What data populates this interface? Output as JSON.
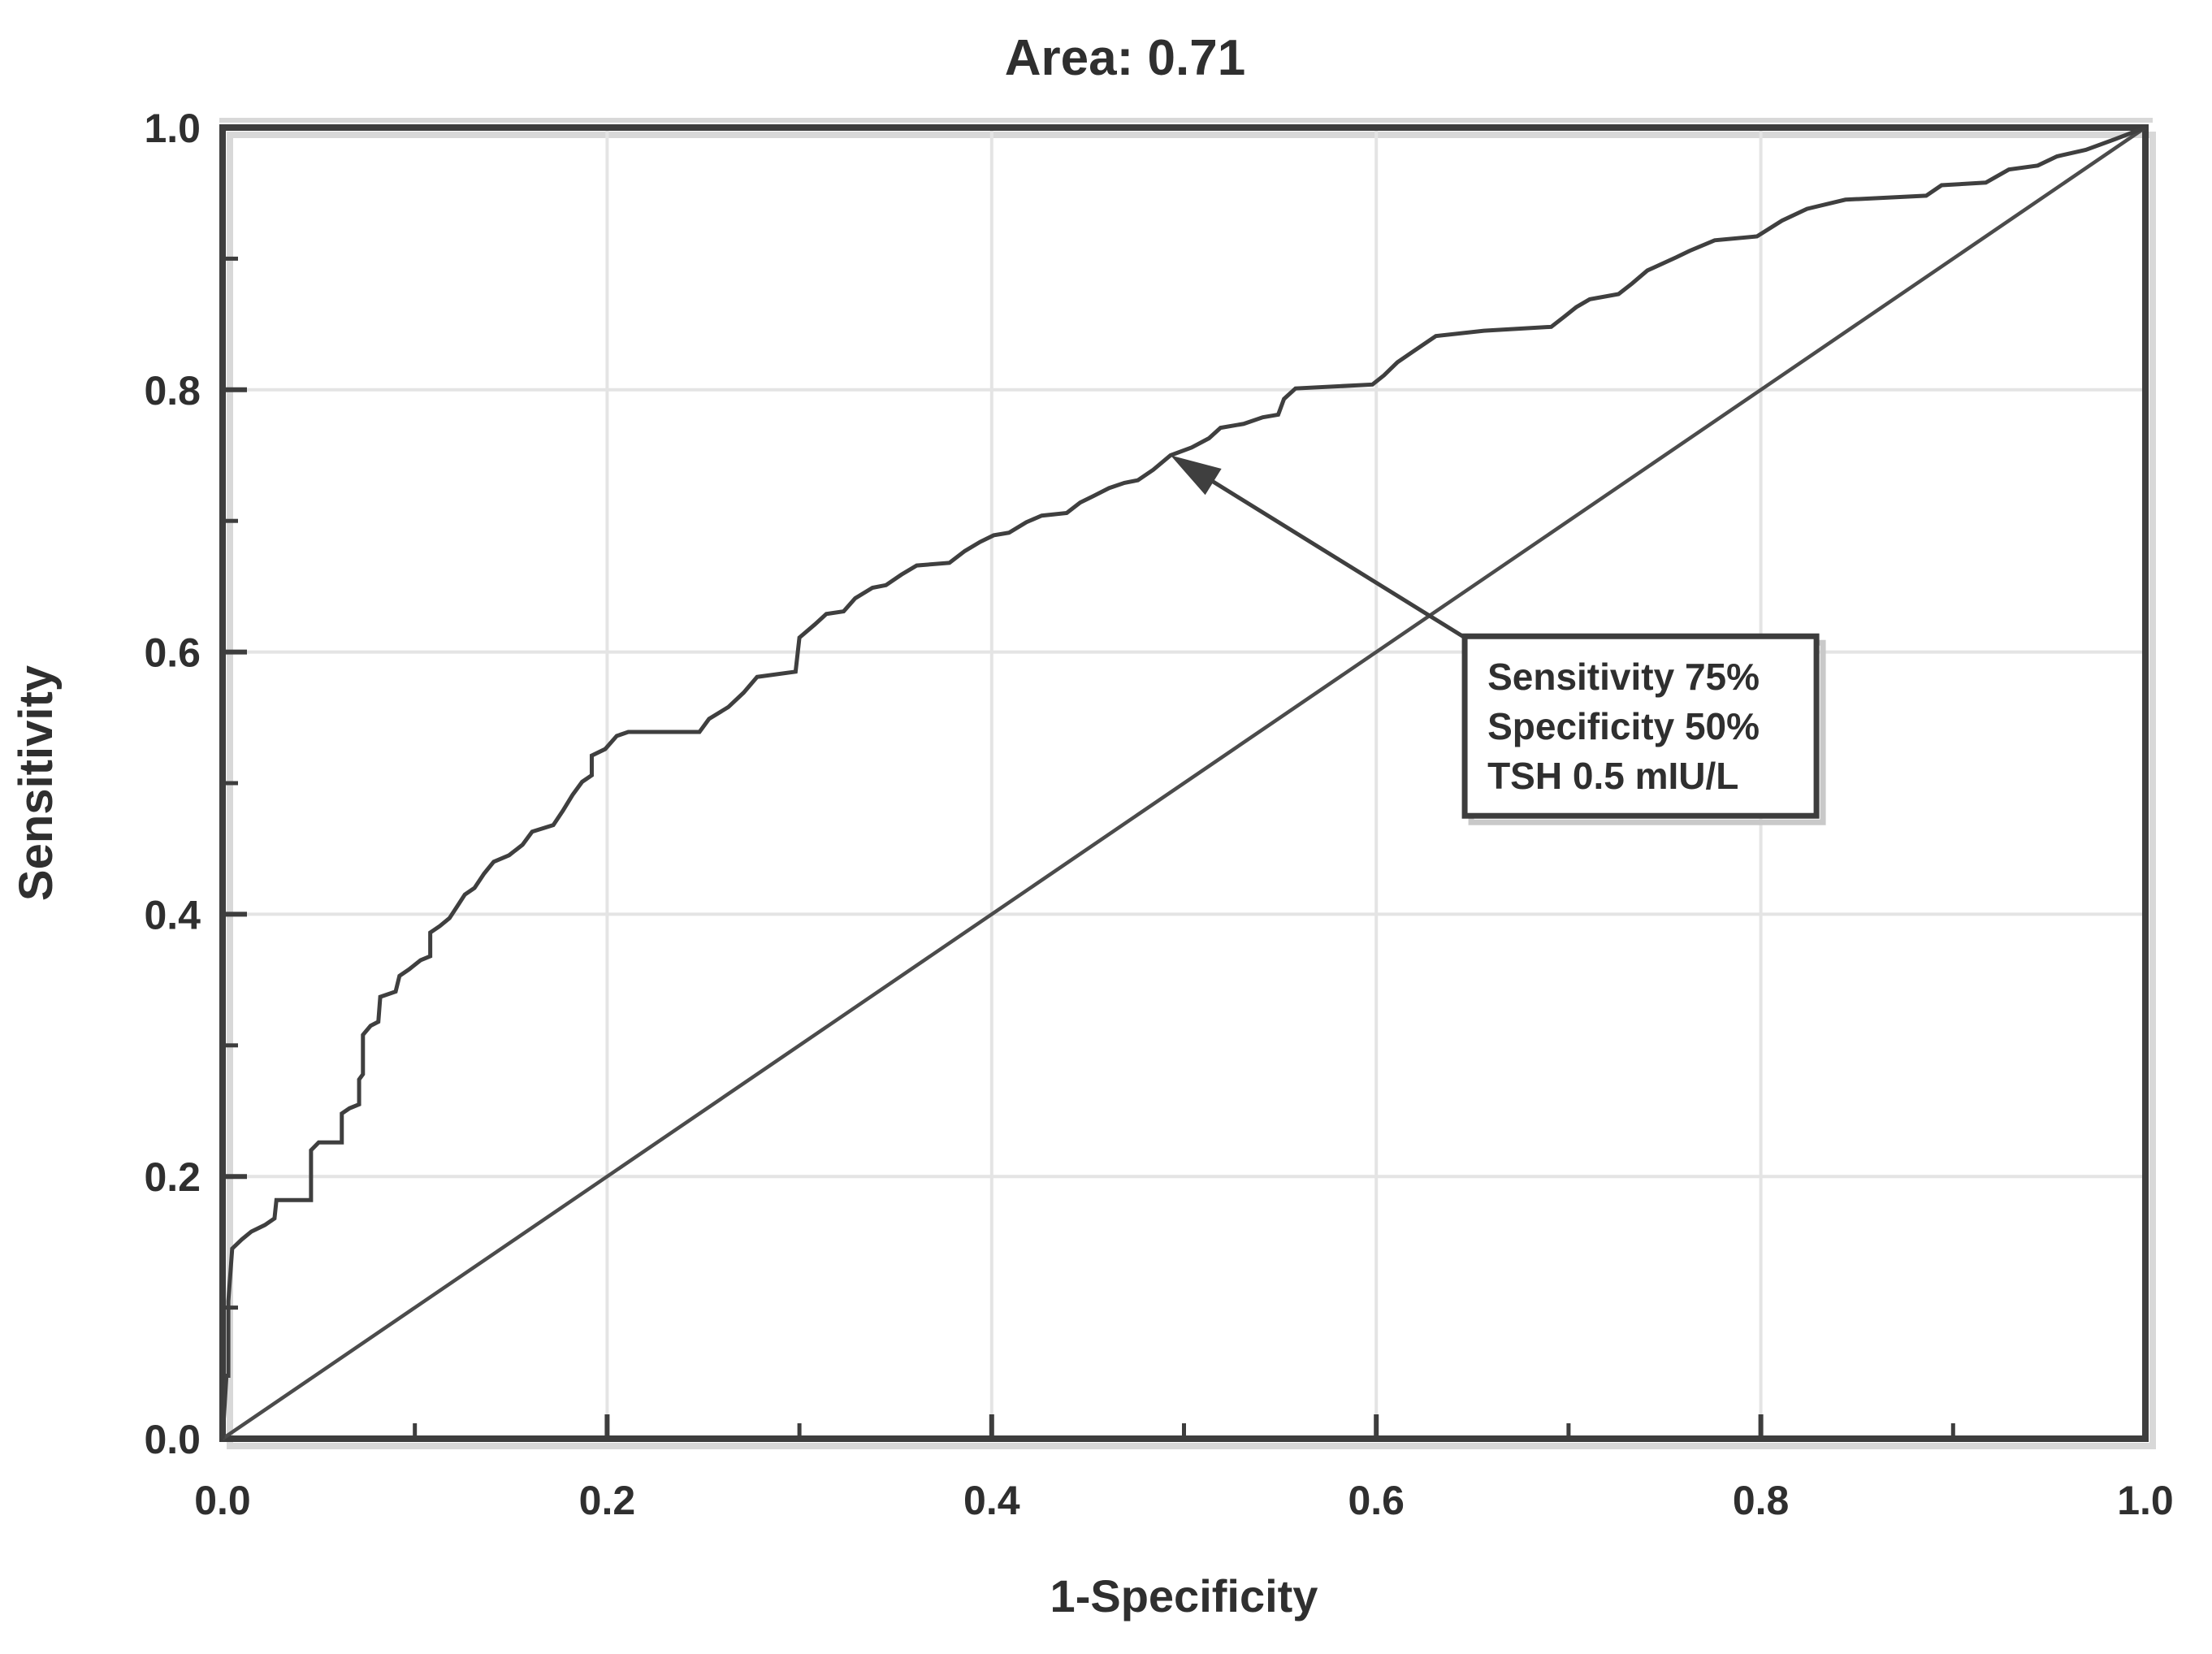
{
  "chart_data": {
    "type": "line",
    "subtype": "roc_curve",
    "title": "Area: 0.71",
    "area_under_curve": 0.71,
    "xlabel": "1-Specificity",
    "ylabel": "Sensitivity",
    "xlim": [
      0.0,
      1.0
    ],
    "ylim": [
      0.0,
      1.0
    ],
    "x_ticks": [
      0.0,
      0.2,
      0.4,
      0.6,
      0.8,
      1.0
    ],
    "x_tick_labels": [
      "0.0",
      "0.2",
      "0.4",
      "0.6",
      "0.8",
      "1.0"
    ],
    "y_ticks": [
      0.0,
      0.2,
      0.4,
      0.6,
      0.8,
      1.0
    ],
    "y_tick_labels": [
      "0.0",
      "0.2",
      "0.4",
      "0.6",
      "0.8",
      "1.0"
    ],
    "minor_ticks_x": [
      0.1,
      0.3,
      0.5,
      0.7,
      0.9
    ],
    "minor_ticks_y": [
      0.1,
      0.3,
      0.5,
      0.7,
      0.9
    ],
    "grid": "major",
    "legend": "none",
    "series": [
      {
        "name": "ROC curve",
        "type": "step",
        "points": [
          [
            0.0,
            0.0
          ],
          [
            0.002,
            0.048
          ],
          [
            0.003,
            0.048
          ],
          [
            0.003,
            0.105
          ],
          [
            0.005,
            0.145
          ],
          [
            0.01,
            0.152
          ],
          [
            0.015,
            0.158
          ],
          [
            0.022,
            0.163
          ],
          [
            0.027,
            0.168
          ],
          [
            0.028,
            0.182
          ],
          [
            0.046,
            0.182
          ],
          [
            0.046,
            0.22
          ],
          [
            0.05,
            0.226
          ],
          [
            0.062,
            0.226
          ],
          [
            0.062,
            0.248
          ],
          [
            0.066,
            0.252
          ],
          [
            0.071,
            0.255
          ],
          [
            0.071,
            0.274
          ],
          [
            0.073,
            0.278
          ],
          [
            0.073,
            0.308
          ],
          [
            0.077,
            0.315
          ],
          [
            0.081,
            0.318
          ],
          [
            0.082,
            0.337
          ],
          [
            0.09,
            0.341
          ],
          [
            0.092,
            0.353
          ],
          [
            0.097,
            0.358
          ],
          [
            0.103,
            0.365
          ],
          [
            0.108,
            0.368
          ],
          [
            0.108,
            0.386
          ],
          [
            0.113,
            0.391
          ],
          [
            0.118,
            0.397
          ],
          [
            0.122,
            0.406
          ],
          [
            0.126,
            0.415
          ],
          [
            0.131,
            0.42
          ],
          [
            0.136,
            0.431
          ],
          [
            0.141,
            0.44
          ],
          [
            0.149,
            0.445
          ],
          [
            0.156,
            0.453
          ],
          [
            0.161,
            0.463
          ],
          [
            0.172,
            0.468
          ],
          [
            0.177,
            0.479
          ],
          [
            0.182,
            0.491
          ],
          [
            0.187,
            0.501
          ],
          [
            0.192,
            0.506
          ],
          [
            0.192,
            0.521
          ],
          [
            0.199,
            0.526
          ],
          [
            0.205,
            0.536
          ],
          [
            0.211,
            0.539
          ],
          [
            0.248,
            0.539
          ],
          [
            0.253,
            0.549
          ],
          [
            0.263,
            0.558
          ],
          [
            0.271,
            0.569
          ],
          [
            0.278,
            0.581
          ],
          [
            0.298,
            0.585
          ],
          [
            0.3,
            0.611
          ],
          [
            0.308,
            0.621
          ],
          [
            0.314,
            0.629
          ],
          [
            0.323,
            0.631
          ],
          [
            0.329,
            0.641
          ],
          [
            0.338,
            0.649
          ],
          [
            0.345,
            0.651
          ],
          [
            0.353,
            0.659
          ],
          [
            0.361,
            0.666
          ],
          [
            0.378,
            0.668
          ],
          [
            0.386,
            0.677
          ],
          [
            0.394,
            0.684
          ],
          [
            0.401,
            0.689
          ],
          [
            0.409,
            0.691
          ],
          [
            0.418,
            0.699
          ],
          [
            0.426,
            0.704
          ],
          [
            0.439,
            0.706
          ],
          [
            0.446,
            0.714
          ],
          [
            0.453,
            0.719
          ],
          [
            0.461,
            0.725
          ],
          [
            0.469,
            0.729
          ],
          [
            0.476,
            0.731
          ],
          [
            0.484,
            0.739
          ],
          [
            0.493,
            0.75
          ],
          [
            0.504,
            0.756
          ],
          [
            0.513,
            0.763
          ],
          [
            0.519,
            0.771
          ],
          [
            0.531,
            0.774
          ],
          [
            0.541,
            0.779
          ],
          [
            0.549,
            0.781
          ],
          [
            0.552,
            0.793
          ],
          [
            0.558,
            0.801
          ],
          [
            0.598,
            0.804
          ],
          [
            0.604,
            0.811
          ],
          [
            0.611,
            0.821
          ],
          [
            0.619,
            0.829
          ],
          [
            0.631,
            0.841
          ],
          [
            0.656,
            0.845
          ],
          [
            0.691,
            0.848
          ],
          [
            0.698,
            0.856
          ],
          [
            0.704,
            0.863
          ],
          [
            0.711,
            0.869
          ],
          [
            0.726,
            0.873
          ],
          [
            0.733,
            0.881
          ],
          [
            0.741,
            0.891
          ],
          [
            0.756,
            0.901
          ],
          [
            0.763,
            0.906
          ],
          [
            0.776,
            0.914
          ],
          [
            0.798,
            0.917
          ],
          [
            0.811,
            0.929
          ],
          [
            0.824,
            0.938
          ],
          [
            0.844,
            0.945
          ],
          [
            0.886,
            0.948
          ],
          [
            0.894,
            0.956
          ],
          [
            0.917,
            0.958
          ],
          [
            0.929,
            0.968
          ],
          [
            0.944,
            0.971
          ],
          [
            0.954,
            0.978
          ],
          [
            0.969,
            0.983
          ],
          [
            0.984,
            0.991
          ],
          [
            1.0,
            1.0
          ]
        ]
      },
      {
        "name": "Reference diagonal",
        "type": "line",
        "points": [
          [
            0.0,
            0.0
          ],
          [
            1.0,
            1.0
          ]
        ]
      }
    ],
    "annotation": {
      "lines": [
        "Sensitivity 75%",
        "Specificity 50%",
        "TSH 0.5 mIU/L"
      ],
      "arrow_tip_xy": [
        0.493,
        0.75
      ],
      "box_anchor_xy": [
        0.646,
        0.612
      ]
    },
    "colors": {
      "curve": "#3f3f3f",
      "diagonal": "#4b4b4b",
      "grid": "#e4e4e4",
      "frame": "#3d3d3d",
      "frame_shadow": "#d8d8d8",
      "box_border": "#3d3d3d",
      "box_shadow": "#c9c9c9",
      "text": "#2f2f2f",
      "background": "#ffffff"
    }
  }
}
